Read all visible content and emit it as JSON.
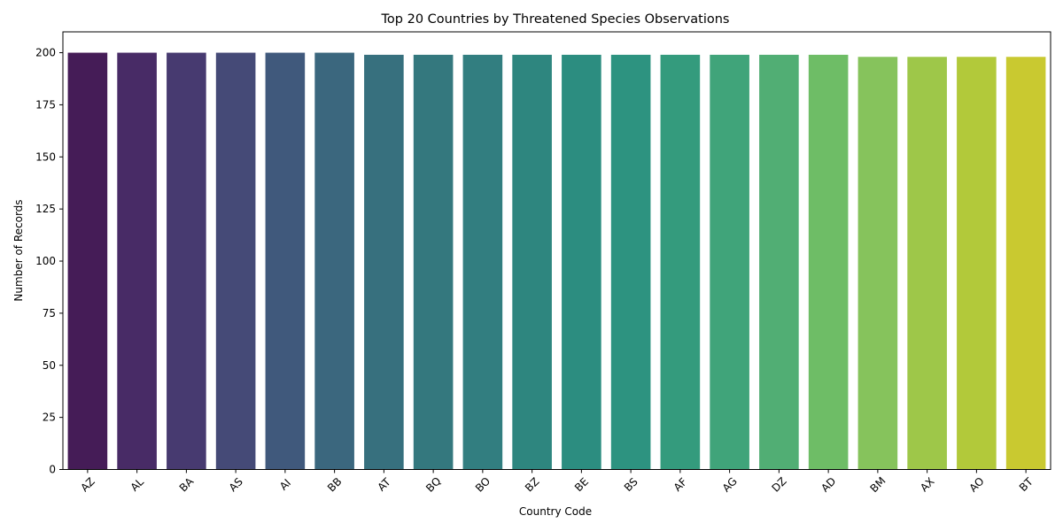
{
  "chart_data": {
    "type": "bar",
    "title": "Top 20 Countries by Threatened Species Observations",
    "xlabel": "Country Code",
    "ylabel": "Number of Records",
    "ylim": [
      0,
      210
    ],
    "yticks": [
      0,
      25,
      50,
      75,
      100,
      125,
      150,
      175,
      200
    ],
    "grid": false,
    "palette": "viridis",
    "categories": [
      "AZ",
      "AL",
      "BA",
      "AS",
      "AI",
      "BB",
      "AT",
      "BQ",
      "BO",
      "BZ",
      "BE",
      "BS",
      "AF",
      "AG",
      "DZ",
      "AD",
      "BM",
      "AX",
      "AO",
      "BT"
    ],
    "values": [
      200,
      200,
      200,
      200,
      200,
      200,
      199,
      199,
      199,
      199,
      199,
      199,
      199,
      199,
      199,
      199,
      198,
      198,
      198,
      198
    ],
    "colors": [
      "#451c57",
      "#482b66",
      "#473a70",
      "#454a77",
      "#40597c",
      "#3b677e",
      "#37707e",
      "#34787e",
      "#327e80",
      "#2e867f",
      "#2c8d80",
      "#2d9380",
      "#349b7d",
      "#40a47a",
      "#51ae74",
      "#6ebd66",
      "#86c35c",
      "#9ec749",
      "#b2c93a",
      "#c9c930"
    ]
  }
}
